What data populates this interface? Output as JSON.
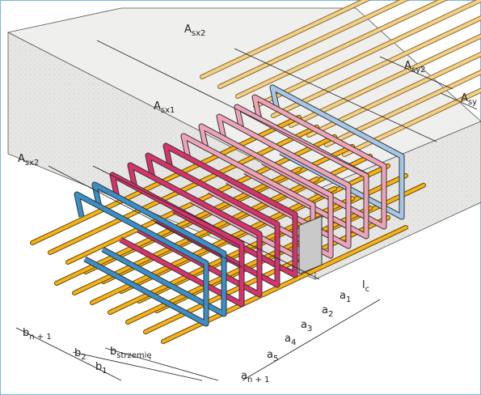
{
  "labels": [
    {
      "base": "A",
      "sub": "sx2"
    },
    {
      "base": "A",
      "sub": "sy2"
    },
    {
      "base": "A",
      "sub": "sy"
    },
    {
      "base": "A",
      "sub": "sx1"
    },
    {
      "base": "A",
      "sub": "sx2"
    },
    {
      "base": "b",
      "sub": "n + 1"
    },
    {
      "base": "b",
      "sub": "2"
    },
    {
      "base": "b",
      "sub": "1"
    },
    {
      "base": "b",
      "sub": "strzemię"
    },
    {
      "base": "a",
      "sub": "n + 1"
    },
    {
      "base": "a",
      "sub": "5"
    },
    {
      "base": "a",
      "sub": "4"
    },
    {
      "base": "a",
      "sub": "3"
    },
    {
      "base": "a",
      "sub": "2"
    },
    {
      "base": "a",
      "sub": "1"
    },
    {
      "base": "l",
      "sub": "c"
    }
  ]
}
